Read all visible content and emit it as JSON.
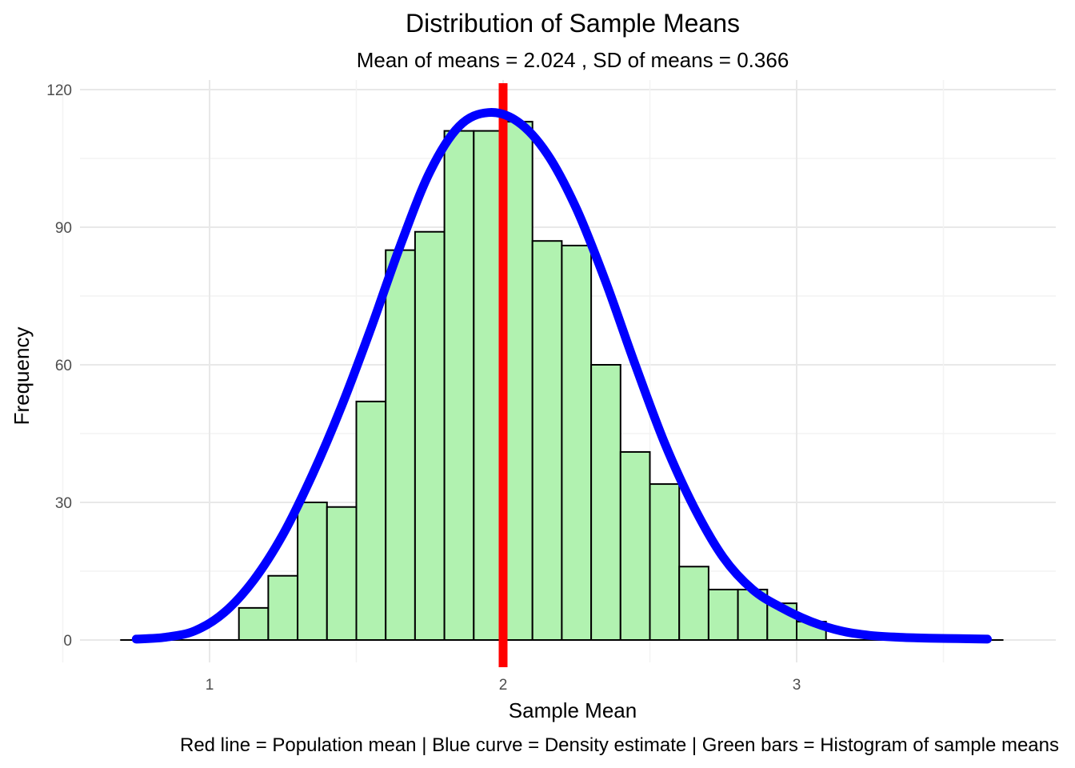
{
  "chart_data": {
    "type": "bar",
    "title": "Distribution of Sample Means",
    "subtitle": "Mean of means = 2.024 , SD of means = 0.366",
    "xlabel": "Sample Mean",
    "ylabel": "Frequency",
    "caption": "Red line = Population mean | Blue curve = Density estimate | Green bars = Histogram of sample means",
    "xlim": [
      0.7,
      3.8
    ],
    "ylim": [
      0,
      120
    ],
    "x_ticks": [
      1,
      2,
      3
    ],
    "y_ticks": [
      0,
      30,
      60,
      90,
      120
    ],
    "grid": true,
    "bins": {
      "start": 1.1,
      "width": 0.1,
      "counts": [
        7,
        14,
        30,
        29,
        52,
        85,
        89,
        111,
        111,
        113,
        87,
        86,
        60,
        41,
        34,
        16,
        11,
        11,
        8,
        4
      ]
    },
    "bar_fill": "#b1f2b0",
    "bar_outline": "#000000",
    "population_mean": 2.0,
    "population_mean_color": "#ff0000",
    "density_curve": {
      "color": "#0000ff",
      "x": [
        0.75,
        0.85,
        0.95,
        1.05,
        1.15,
        1.25,
        1.35,
        1.45,
        1.55,
        1.65,
        1.75,
        1.85,
        1.95,
        2.05,
        2.15,
        2.25,
        2.35,
        2.45,
        2.55,
        2.65,
        2.75,
        2.85,
        2.95,
        3.05,
        3.15,
        3.25,
        3.35,
        3.45,
        3.55,
        3.65
      ],
      "y": [
        0.2,
        0.6,
        2,
        6,
        13,
        23,
        36,
        51,
        68,
        86,
        102,
        112,
        115,
        113,
        106,
        94,
        78,
        60,
        43,
        29,
        18,
        11,
        7,
        4,
        2,
        1,
        0.6,
        0.4,
        0.3,
        0.2
      ]
    }
  }
}
